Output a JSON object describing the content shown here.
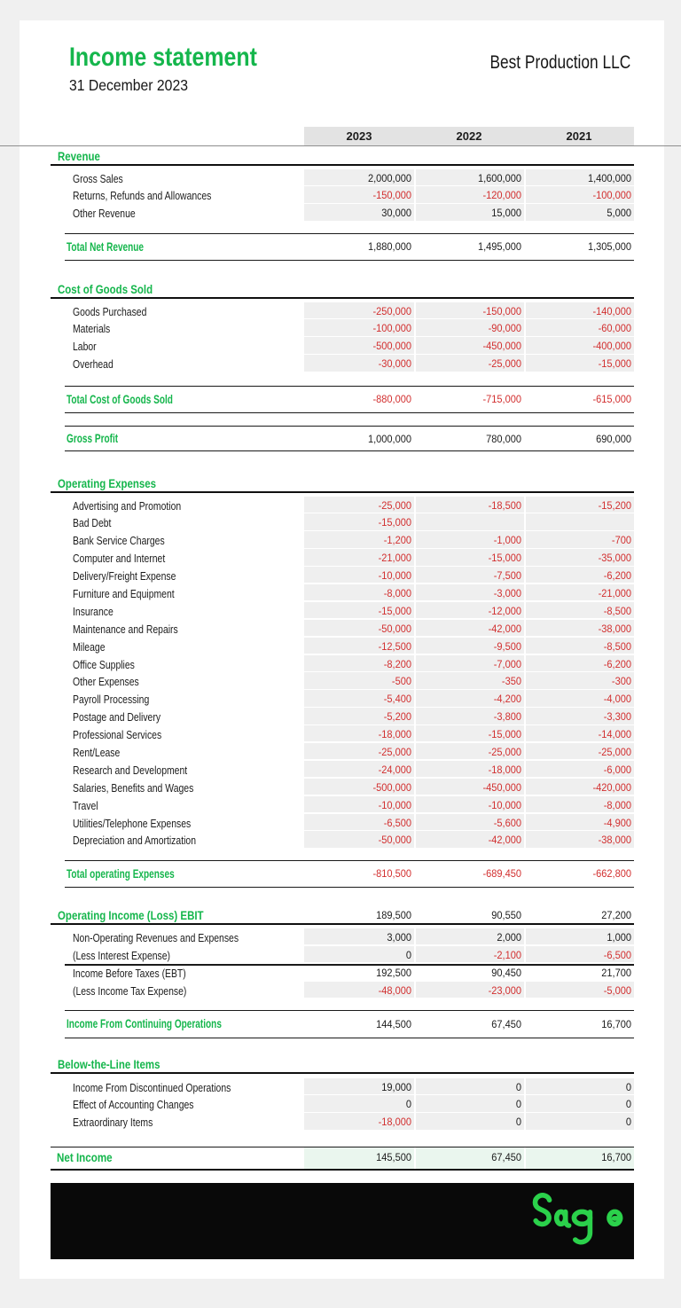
{
  "header": {
    "title": "Income statement",
    "date": "31 December 2023",
    "company": "Best Production LLC"
  },
  "columns": [
    "2023",
    "2022",
    "2021"
  ],
  "colors": {
    "accent_green": "#15b64c",
    "negative_red": "#d22f2f",
    "cell_gray": "#efefef",
    "column_header_gray": "#e3e3e3",
    "net_income_bg": "#eaf6ee",
    "banner_black": "#090909",
    "logo_green": "#2bd14b",
    "page_gray": "#f0f0f0",
    "divider_gray": "#8e8e8e"
  },
  "sections": [
    {
      "heading": "Revenue",
      "rows": [
        {
          "label": "Gross Sales",
          "values": [
            "2,000,000",
            "1,600,000",
            "1,400,000"
          ]
        },
        {
          "label": "Returns, Refunds and Allowances",
          "values": [
            "-150,000",
            "-120,000",
            "-100,000"
          ]
        },
        {
          "label": "Other Revenue",
          "values": [
            "30,000",
            "15,000",
            "5,000"
          ]
        }
      ],
      "totals": [
        {
          "label": "Total Net Revenue",
          "values": [
            "1,880,000",
            "1,495,000",
            "1,305,000"
          ]
        }
      ]
    },
    {
      "heading": "Cost of Goods Sold",
      "rows": [
        {
          "label": "Goods Purchased",
          "values": [
            "-250,000",
            "-150,000",
            "-140,000"
          ]
        },
        {
          "label": "Materials",
          "values": [
            "-100,000",
            "-90,000",
            "-60,000"
          ]
        },
        {
          "label": "Labor",
          "values": [
            "-500,000",
            "-450,000",
            "-400,000"
          ]
        },
        {
          "label": "Overhead",
          "values": [
            "-30,000",
            "-25,000",
            "-15,000"
          ]
        }
      ],
      "totals": [
        {
          "label": "Total Cost of Goods Sold",
          "values": [
            "-880,000",
            "-715,000",
            "-615,000"
          ]
        },
        {
          "label": "Gross Profit",
          "values": [
            "1,000,000",
            "780,000",
            "690,000"
          ]
        }
      ]
    },
    {
      "heading": "Operating Expenses",
      "rows": [
        {
          "label": "Advertising and Promotion",
          "values": [
            "-25,000",
            "-18,500",
            "-15,200"
          ]
        },
        {
          "label": "Bad Debt",
          "values": [
            "-15,000",
            "",
            ""
          ]
        },
        {
          "label": "Bank Service Charges",
          "values": [
            "-1,200",
            "-1,000",
            "-700"
          ]
        },
        {
          "label": "Computer and Internet",
          "values": [
            "-21,000",
            "-15,000",
            "-35,000"
          ]
        },
        {
          "label": "Delivery/Freight Expense",
          "values": [
            "-10,000",
            "-7,500",
            "-6,200"
          ]
        },
        {
          "label": "Furniture and Equipment",
          "values": [
            "-8,000",
            "-3,000",
            "-21,000"
          ]
        },
        {
          "label": "Insurance",
          "values": [
            "-15,000",
            "-12,000",
            "-8,500"
          ]
        },
        {
          "label": "Maintenance and Repairs",
          "values": [
            "-50,000",
            "-42,000",
            "-38,000"
          ]
        },
        {
          "label": "Mileage",
          "values": [
            "-12,500",
            "-9,500",
            "-8,500"
          ]
        },
        {
          "label": "Office Supplies",
          "values": [
            "-8,200",
            "-7,000",
            "-6,200"
          ]
        },
        {
          "label": "Other Expenses",
          "values": [
            "-500",
            "-350",
            "-300"
          ]
        },
        {
          "label": "Payroll Processing",
          "values": [
            "-5,400",
            "-4,200",
            "-4,000"
          ]
        },
        {
          "label": "Postage and Delivery",
          "values": [
            "-5,200",
            "-3,800",
            "-3,300"
          ]
        },
        {
          "label": "Professional Services",
          "values": [
            "-18,000",
            "-15,000",
            "-14,000"
          ]
        },
        {
          "label": "Rent/Lease",
          "values": [
            "-25,000",
            "-25,000",
            "-25,000"
          ]
        },
        {
          "label": "Research and Development",
          "values": [
            "-24,000",
            "-18,000",
            "-6,000"
          ]
        },
        {
          "label": "Salaries, Benefits and Wages",
          "values": [
            "-500,000",
            "-450,000",
            "-420,000"
          ]
        },
        {
          "label": "Travel",
          "values": [
            "-10,000",
            "-10,000",
            "-8,000"
          ]
        },
        {
          "label": "Utilities/Telephone Expenses",
          "values": [
            "-6,500",
            "-5,600",
            "-4,900"
          ]
        },
        {
          "label": "Depreciation and Amortization",
          "values": [
            "-50,000",
            "-42,000",
            "-38,000"
          ]
        }
      ],
      "totals": [
        {
          "label": "Total operating Expenses",
          "values": [
            "-810,500",
            "-689,450",
            "-662,800"
          ]
        }
      ]
    },
    {
      "heading": "Operating Income (Loss) EBIT",
      "heading_values": [
        "189,500",
        "90,550",
        "27,200"
      ],
      "rows": [
        {
          "label": "Non-Operating Revenues and Expenses",
          "values": [
            "3,000",
            "2,000",
            "1,000"
          ]
        },
        {
          "label": "(Less Interest Expense)",
          "values": [
            "0",
            "-2,100",
            "-6,500"
          ]
        },
        {
          "label": "Income Before Taxes (EBT)",
          "values": [
            "192,500",
            "90,450",
            "21,700"
          ],
          "fill": false
        },
        {
          "label": "(Less Income Tax Expense)",
          "values": [
            "-48,000",
            "-23,000",
            "-5,000"
          ]
        }
      ],
      "divider_after_row": 2,
      "totals": [
        {
          "label": "Income From Continuing Operations",
          "values": [
            "144,500",
            "67,450",
            "16,700"
          ]
        }
      ]
    },
    {
      "heading": "Below-the-Line Items",
      "rows": [
        {
          "label": "Income From Discontinued Operations",
          "values": [
            "19,000",
            "0",
            "0"
          ]
        },
        {
          "label": "Effect of Accounting Changes",
          "values": [
            "0",
            "0",
            "0"
          ]
        },
        {
          "label": "Extraordinary Items",
          "values": [
            "-18,000",
            "0",
            "0"
          ]
        }
      ],
      "totals": [
        {
          "label": "Net Income",
          "values": [
            "145,500",
            "67,450",
            "16,700"
          ],
          "highlight": true
        }
      ]
    }
  ],
  "footer": {
    "logo_text": "Sage"
  }
}
